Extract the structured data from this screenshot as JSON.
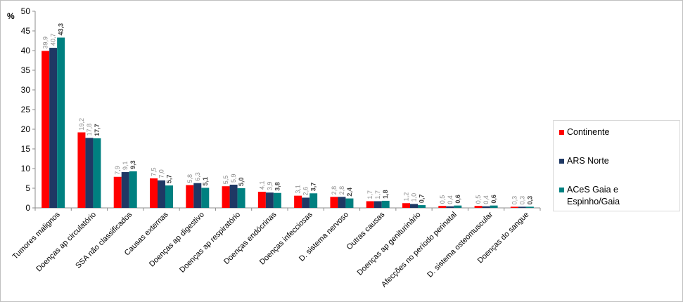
{
  "chart_data": {
    "type": "bar",
    "ylabel": "%",
    "ylim": [
      0,
      50
    ],
    "yticks": [
      "0",
      "5",
      "10",
      "15",
      "20",
      "25",
      "30",
      "35",
      "40",
      "45",
      "50"
    ],
    "grid": false,
    "legend_position": "right",
    "categories": [
      "Tumores malignos",
      "Doenças ap circulatório",
      "SSA não classificados",
      "Causas externas",
      "Doenças ap digestivo",
      "Doenças ap respiratório",
      "Doenças endócrinas",
      "Doenças infecciosas",
      "D. sistema nervoso",
      "Outras causas",
      "Doenças ap geniturinário",
      "Afecções no período perinatal",
      "D. sistema osteomuscular",
      "Doenças do sangue"
    ],
    "series": [
      {
        "name": "Continente",
        "color": "#ff0000",
        "label_color": "#8c8c8c",
        "label_bold": false,
        "values": [
          39.9,
          19.2,
          7.9,
          7.5,
          5.8,
          5.5,
          4.1,
          3.1,
          2.8,
          1.7,
          1.2,
          0.5,
          0.5,
          0.3
        ],
        "labels": [
          "39,9",
          "19,2",
          "7,9",
          "7,5",
          "5,8",
          "5,5",
          "4,1",
          "3,1",
          "2,8",
          "1,7",
          "1,2",
          "0,5",
          "0,5",
          "0,3"
        ]
      },
      {
        "name": "ARS Norte",
        "color": "#1f3864",
        "label_color": "#8c8c8c",
        "label_bold": false,
        "values": [
          40.7,
          17.8,
          9.1,
          7.0,
          6.3,
          5.9,
          3.9,
          2.6,
          2.8,
          1.7,
          1.0,
          0.4,
          0.4,
          0.3
        ],
        "labels": [
          "40,7",
          "17,8",
          "9,1",
          "7,0",
          "6,3",
          "5,9",
          "3,9",
          "2,6",
          "2,8",
          "1,7",
          "1,0",
          "0,4",
          "0,4",
          "0,3"
        ]
      },
      {
        "name": "ACeS Gaia e Espinho/Gaia",
        "color": "#008080",
        "label_color": "#404040",
        "label_bold": true,
        "values": [
          43.3,
          17.7,
          9.3,
          5.7,
          5.1,
          5.0,
          3.8,
          3.7,
          2.4,
          1.8,
          0.7,
          0.6,
          0.6,
          0.3
        ],
        "labels": [
          "43,3",
          "17,7",
          "9,3",
          "5,7",
          "5,1",
          "5,0",
          "3,8",
          "3,7",
          "2,4",
          "1,8",
          "0,7",
          "0,6",
          "0,6",
          "0,3"
        ]
      }
    ]
  },
  "legend": {
    "items": [
      {
        "label_lines": [
          "Continente"
        ]
      },
      {
        "label_lines": [
          "ARS Norte"
        ]
      },
      {
        "label_lines": [
          "ACeS Gaia e",
          "Espinho/Gaia"
        ]
      }
    ]
  }
}
